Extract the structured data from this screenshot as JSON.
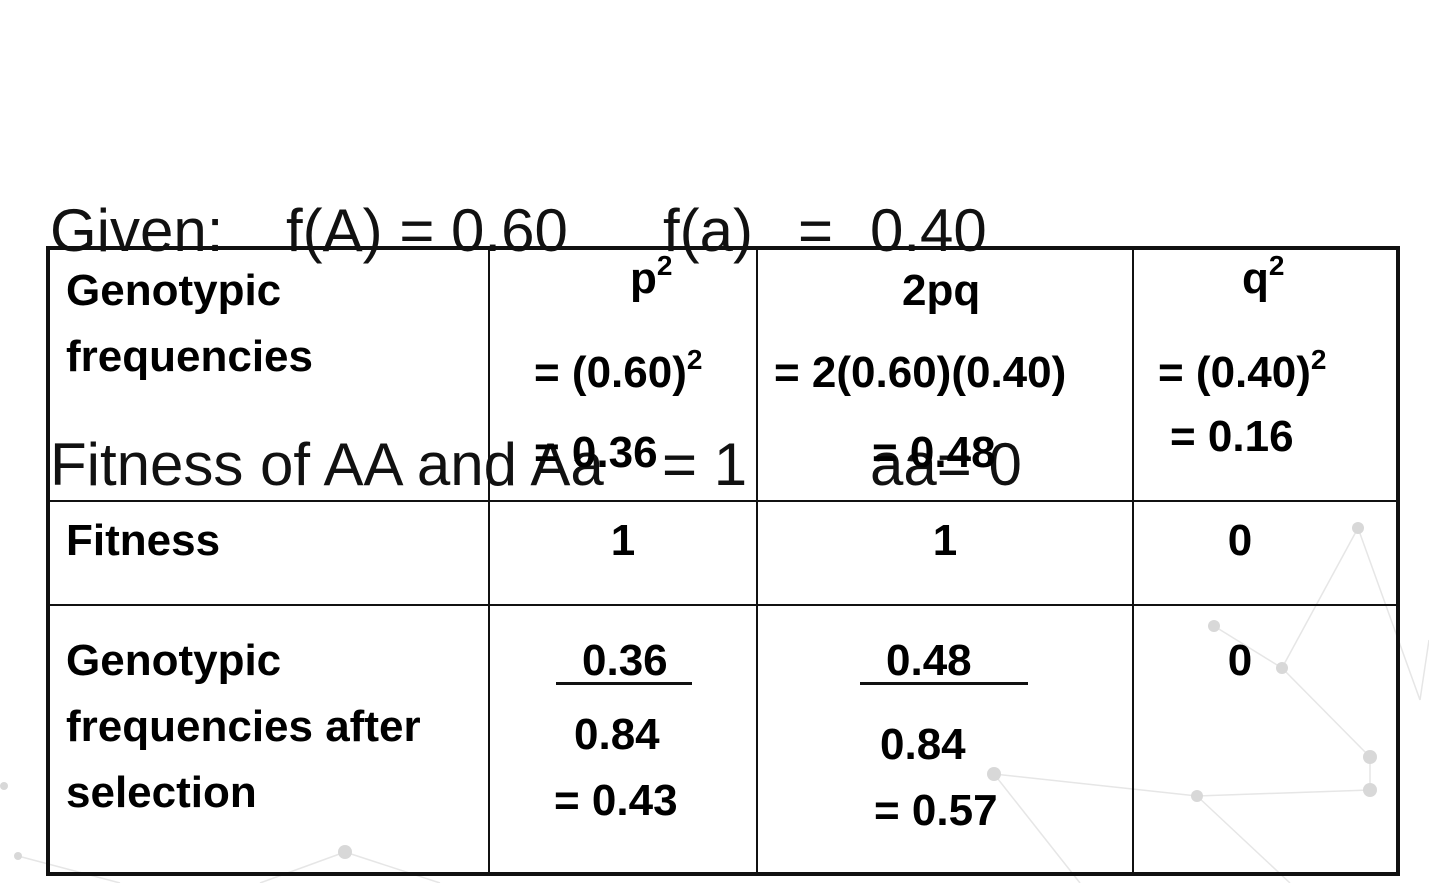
{
  "given": {
    "line1": {
      "label": "Given:",
      "fA": "f(A) = 0.60",
      "fa_label": "f(a)",
      "fa_eq": "=",
      "fa_value": "0.40"
    },
    "line2": {
      "label": "Fitness of AA and Aa",
      "eq": "= 1",
      "aa": "aa= 0"
    }
  },
  "table": {
    "rows": [
      {
        "header": [
          "Genotypic",
          "frequencies"
        ],
        "col1": {
          "symbol": "p",
          "sup": "2",
          "line1": "= (0.60)",
          "line1_sup": "2",
          "line2": "= 0.36"
        },
        "col2": {
          "symbol": "2pq",
          "line1": "= 2(0.60)(0.40)",
          "line2": "= 0.48"
        },
        "col3": {
          "symbol": "q",
          "sup": "2",
          "line1": "= (0.40)",
          "line1_sup": "2",
          "line2": "= 0.16"
        }
      },
      {
        "header": [
          "Fitness"
        ],
        "col1": "1",
        "col2": "1",
        "col3": "0"
      },
      {
        "header": [
          "Genotypic",
          "frequencies after",
          "selection"
        ],
        "col1": {
          "numerator": "0.36",
          "denominator": "0.84",
          "result": "= 0.43"
        },
        "col2": {
          "numerator": "0.48",
          "denominator": "0.84",
          "result": "= 0.57"
        },
        "col3": "0"
      }
    ]
  }
}
